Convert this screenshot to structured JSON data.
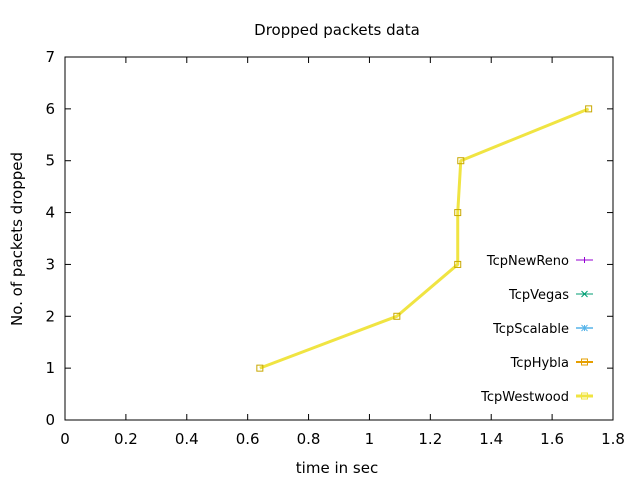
{
  "chart_data": {
    "type": "line",
    "title": "Dropped packets data",
    "xlabel": "time in sec",
    "ylabel": "No. of packets dropped",
    "xlim": [
      0,
      1.8
    ],
    "ylim": [
      0,
      7
    ],
    "xticks": [
      0,
      0.2,
      0.4,
      0.6,
      0.8,
      1,
      1.2,
      1.4,
      1.6,
      1.8
    ],
    "xtick_labels": [
      "0",
      "0.2",
      "0.4",
      "0.6",
      "0.8",
      "1",
      "1.2",
      "1.4",
      "1.6",
      "1.8"
    ],
    "yticks": [
      0,
      1,
      2,
      3,
      4,
      5,
      6,
      7
    ],
    "ytick_labels": [
      "0",
      "1",
      "2",
      "3",
      "4",
      "5",
      "6",
      "7"
    ],
    "grid": false,
    "legend_position": "right",
    "series": [
      {
        "name": "TcpNewReno",
        "color": "#9400d3",
        "marker": "plus",
        "width": 1,
        "x": [],
        "y": []
      },
      {
        "name": "TcpVegas",
        "color": "#009e73",
        "marker": "cross",
        "width": 1,
        "x": [],
        "y": []
      },
      {
        "name": "TcpScalable",
        "color": "#56b4e9",
        "marker": "star",
        "width": 1.5,
        "x": [],
        "y": []
      },
      {
        "name": "TcpHybla",
        "color": "#e69f00",
        "marker": "square",
        "width": 2,
        "x": [],
        "y": []
      },
      {
        "name": "TcpWestwood",
        "color": "#f0e442",
        "marker": "square",
        "width": 3,
        "x": [
          0.64,
          1.09,
          1.29,
          1.29,
          1.3,
          1.72
        ],
        "y": [
          1,
          2,
          3,
          4,
          5,
          6
        ]
      }
    ]
  }
}
